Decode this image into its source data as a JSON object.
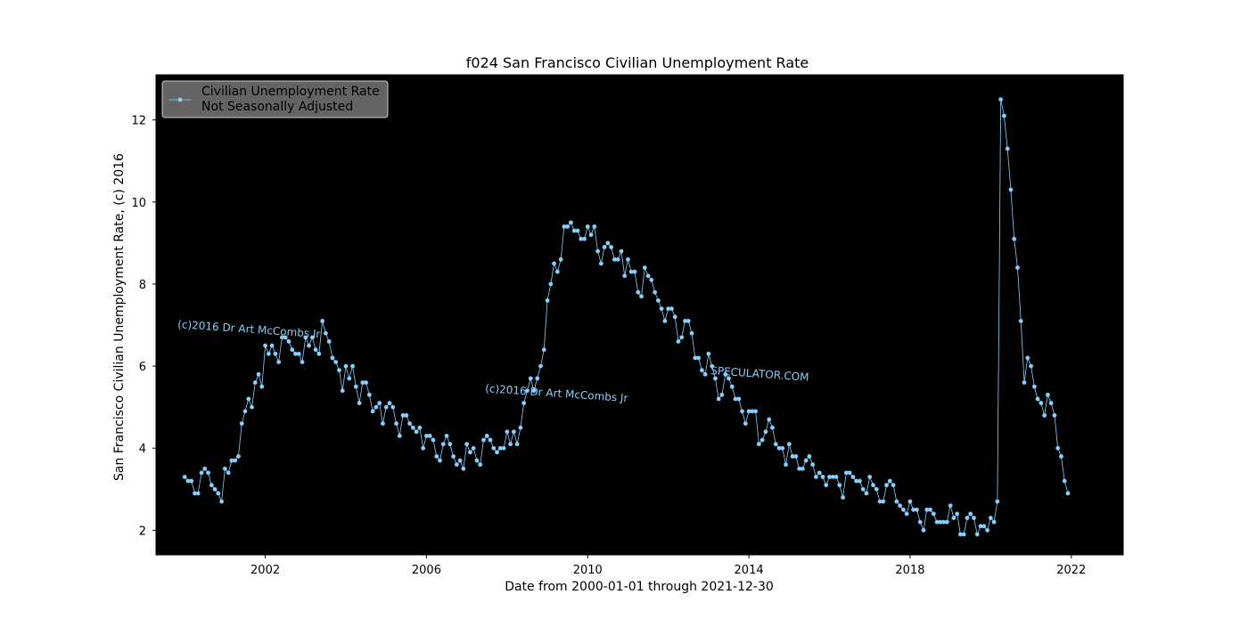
{
  "chart_data": {
    "type": "line",
    "title": "f024 San Francisco Civilian Unemployment Rate",
    "xlabel": "Date from 2000-01-01 through 2021-12-30",
    "ylabel": "San Francisco Civilian Unemployment Rate, (c) 2016",
    "x_ticks": [
      "2002",
      "2006",
      "2010",
      "2014",
      "2018",
      "2022"
    ],
    "y_ticks": [
      "2",
      "4",
      "6",
      "8",
      "10",
      "12"
    ],
    "xlim": [
      "1999-04-15",
      "2023-04-15"
    ],
    "ylim": [
      1.4,
      13.1
    ],
    "background": "#000000",
    "series_color": "#87cefa",
    "legend": {
      "position": "upper-left",
      "line1": "Civilian Unemployment Rate",
      "line2": "Not Seasonally Adjusted"
    },
    "annotations": [
      "(c)2016 Dr Art McCombs Jr",
      "(c)2016 Dr Art McCombs Jr",
      "SPECULATOR.COM"
    ],
    "series": [
      {
        "name": "Civilian Unemployment Rate Not Seasonally Adjusted",
        "start": "2000-01",
        "frequency": "monthly",
        "values": [
          3.3,
          3.2,
          3.2,
          2.9,
          2.9,
          3.4,
          3.5,
          3.4,
          3.1,
          3.0,
          2.9,
          2.7,
          3.5,
          3.4,
          3.7,
          3.7,
          3.8,
          4.6,
          4.9,
          5.2,
          5.0,
          5.6,
          5.8,
          5.5,
          6.5,
          6.3,
          6.5,
          6.3,
          6.1,
          6.7,
          6.7,
          6.6,
          6.4,
          6.3,
          6.3,
          6.1,
          6.7,
          6.5,
          6.7,
          6.4,
          6.3,
          7.1,
          6.8,
          6.6,
          6.2,
          6.1,
          5.9,
          5.4,
          6.0,
          5.7,
          6.0,
          5.5,
          5.1,
          5.6,
          5.6,
          5.3,
          4.9,
          5.0,
          5.1,
          4.6,
          5.0,
          5.1,
          5.0,
          4.6,
          4.3,
          4.8,
          4.8,
          4.6,
          4.5,
          4.4,
          4.5,
          4.0,
          4.3,
          4.3,
          4.2,
          3.8,
          3.7,
          4.1,
          4.3,
          4.1,
          3.8,
          3.6,
          3.7,
          3.5,
          4.1,
          3.9,
          4.0,
          3.7,
          3.6,
          4.2,
          4.3,
          4.2,
          4.0,
          3.9,
          4.0,
          4.0,
          4.4,
          4.1,
          4.4,
          4.1,
          4.5,
          5.1,
          5.4,
          5.7,
          5.4,
          5.7,
          6.0,
          6.4,
          7.6,
          8.0,
          8.5,
          8.3,
          8.6,
          9.4,
          9.4,
          9.5,
          9.3,
          9.3,
          9.1,
          9.1,
          9.4,
          9.2,
          9.4,
          8.8,
          8.5,
          8.9,
          9.0,
          8.9,
          8.6,
          8.6,
          8.8,
          8.2,
          8.6,
          8.3,
          8.3,
          7.8,
          7.7,
          8.4,
          8.2,
          8.1,
          7.8,
          7.6,
          7.4,
          7.1,
          7.4,
          7.4,
          7.2,
          6.6,
          6.7,
          7.1,
          7.1,
          6.8,
          6.2,
          6.2,
          5.9,
          5.8,
          6.3,
          6.0,
          5.7,
          5.2,
          5.3,
          5.8,
          5.7,
          5.5,
          5.2,
          5.2,
          4.9,
          4.6,
          4.9,
          4.9,
          4.9,
          4.1,
          4.2,
          4.4,
          4.7,
          4.5,
          4.1,
          4.0,
          4.0,
          3.6,
          4.1,
          3.8,
          3.8,
          3.5,
          3.5,
          3.7,
          3.8,
          3.6,
          3.3,
          3.4,
          3.3,
          3.1,
          3.3,
          3.3,
          3.3,
          3.1,
          2.8,
          3.4,
          3.4,
          3.3,
          3.2,
          3.2,
          3.0,
          2.9,
          3.3,
          3.1,
          3.0,
          2.7,
          2.7,
          3.1,
          3.2,
          3.1,
          2.7,
          2.6,
          2.5,
          2.4,
          2.7,
          2.5,
          2.5,
          2.2,
          2.0,
          2.5,
          2.5,
          2.4,
          2.2,
          2.2,
          2.2,
          2.2,
          2.6,
          2.3,
          2.4,
          1.9,
          1.9,
          2.3,
          2.4,
          2.3,
          1.9,
          2.1,
          2.1,
          2.0,
          2.3,
          2.2,
          2.7,
          12.5,
          12.1,
          11.3,
          10.3,
          9.1,
          8.4,
          7.1,
          5.6,
          6.2,
          6.0,
          5.5,
          5.2,
          5.1,
          4.8,
          5.3,
          5.1,
          4.8,
          4.0,
          3.8,
          3.2,
          2.9
        ]
      }
    ]
  }
}
